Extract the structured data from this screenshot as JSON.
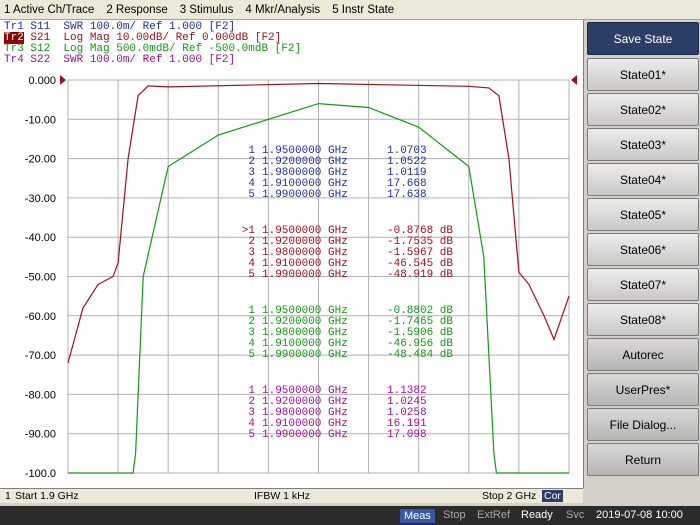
{
  "menu": [
    "1 Active Ch/Trace",
    "2 Response",
    "3 Stimulus",
    "4 Mkr/Analysis",
    "5 Instr State"
  ],
  "traces": [
    {
      "label": "Tr1",
      "text": " S11  SWR 100.0m/ Ref 1.000 [F2]",
      "color": "#1f2fa0"
    },
    {
      "label": "Tr2",
      "text": " S21  Log Mag 10.00dB/ Ref 0.000dB [F2]",
      "color": "#a0101a"
    },
    {
      "label": "Tr3",
      "text": " S12  Log Mag 500.0mdB/ Ref -500.0mdB [F2]",
      "color": "#129a12"
    },
    {
      "label": "Tr4",
      "text": " S22  SWR 100.0m/ Ref 1.000 [F2]",
      "color": "#a0109a"
    }
  ],
  "y_ticks": [
    "0.000",
    "-10.00",
    "-20.00",
    "-30.00",
    "-40.00",
    "-50.00",
    "-60.00",
    "-70.00",
    "-80.00",
    "-90.00",
    "-100.0"
  ],
  "marker_tables": [
    {
      "color": "#1f2fa0",
      "rows": [
        [
          "1",
          "1.9500000 GHz",
          "1.0703"
        ],
        [
          "2",
          "1.9200000 GHz",
          "1.0522"
        ],
        [
          "3",
          "1.9800000 GHz",
          "1.0119"
        ],
        [
          "4",
          "1.9100000 GHz",
          "17.668"
        ],
        [
          "5",
          "1.9900000 GHz",
          "17.638"
        ]
      ]
    },
    {
      "color": "#a0101a",
      "rows": [
        [
          ">1",
          "1.9500000 GHz",
          "-0.8768 dB"
        ],
        [
          "2",
          "1.9200000 GHz",
          "-1.7535 dB"
        ],
        [
          "3",
          "1.9800000 GHz",
          "-1.5967 dB"
        ],
        [
          "4",
          "1.9100000 GHz",
          "-46.545 dB"
        ],
        [
          "5",
          "1.9900000 GHz",
          "-48.919 dB"
        ]
      ]
    },
    {
      "color": "#129a12",
      "rows": [
        [
          "1",
          "1.9500000 GHz",
          "-0.8802 dB"
        ],
        [
          "2",
          "1.9200000 GHz",
          "-1.7465 dB"
        ],
        [
          "3",
          "1.9800000 GHz",
          "-1.5906 dB"
        ],
        [
          "4",
          "1.9100000 GHz",
          "-46.956 dB"
        ],
        [
          "5",
          "1.9900000 GHz",
          "-48.484 dB"
        ]
      ]
    },
    {
      "color": "#a0109a",
      "rows": [
        [
          "1",
          "1.9500000 GHz",
          "1.1382"
        ],
        [
          "2",
          "1.9200000 GHz",
          "1.0245"
        ],
        [
          "3",
          "1.9800000 GHz",
          "1.0258"
        ],
        [
          "4",
          "1.9100000 GHz",
          "16.191"
        ],
        [
          "5",
          "1.9900000 GHz",
          "17.098"
        ]
      ]
    }
  ],
  "right_panel": {
    "title": "Save State",
    "states": [
      "State01*",
      "State02*",
      "State03*",
      "State04*",
      "State05*",
      "State06*",
      "State07*",
      "State08*"
    ],
    "autorec": "Autorec",
    "userpres": "UserPres*",
    "file_dialog": "File Dialog...",
    "return": "Return"
  },
  "status": {
    "channel": "1",
    "start": "Start 1.9 GHz",
    "ifbw": "IFBW 1 kHz",
    "stop": "Stop 2 GHz",
    "cor": "Cor"
  },
  "bottom": {
    "meas": "Meas",
    "stop": "Stop",
    "extref": "ExtRef",
    "ready": "Ready",
    "svc": "Svc",
    "datetime": "2019-07-08 10:00"
  },
  "chart_data": {
    "type": "line",
    "x_range_ghz": [
      1.9,
      2.0
    ],
    "ylim": [
      -100,
      0
    ],
    "series": [
      {
        "name": "S21",
        "x": [
          1.9,
          1.903,
          1.906,
          1.909,
          1.91,
          1.912,
          1.914,
          1.916,
          1.92,
          1.95,
          1.98,
          1.984,
          1.986,
          1.988,
          1.99,
          1.992,
          1.995,
          1.997,
          2.0
        ],
        "y": [
          -72,
          -58,
          -52,
          -50,
          -46.5,
          -20,
          -4,
          -1.5,
          -1.75,
          -0.88,
          -1.6,
          -2,
          -4,
          -20,
          -48.9,
          -52,
          -60,
          -66,
          -55
        ]
      },
      {
        "name": "S12",
        "x": [
          1.9,
          1.913,
          1.9135,
          1.915,
          1.92,
          1.93,
          1.94,
          1.95,
          1.96,
          1.97,
          1.98,
          1.983,
          1.985,
          1.9855,
          2.0
        ],
        "y": [
          -100,
          -100,
          -95,
          -50,
          -22,
          -14,
          -10,
          -6,
          -7,
          -12,
          -22,
          -45,
          -95,
          -100,
          -100
        ]
      }
    ]
  }
}
